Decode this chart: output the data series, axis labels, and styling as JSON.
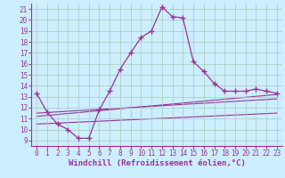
{
  "xlabel": "Windchill (Refroidissement éolien,°C)",
  "bg_color": "#cceeff",
  "line_color": "#993399",
  "grid_color": "#aaccbb",
  "xlim": [
    -0.5,
    23.5
  ],
  "ylim": [
    8.5,
    21.5
  ],
  "yticks": [
    9,
    10,
    11,
    12,
    13,
    14,
    15,
    16,
    17,
    18,
    19,
    20,
    21
  ],
  "xticks": [
    0,
    1,
    2,
    3,
    4,
    5,
    6,
    7,
    8,
    9,
    10,
    11,
    12,
    13,
    14,
    15,
    16,
    17,
    18,
    19,
    20,
    21,
    22,
    23
  ],
  "curve1_x": [
    0,
    1,
    2,
    3,
    4,
    5,
    6,
    7,
    8,
    9,
    10,
    11,
    12,
    13,
    14,
    15,
    16,
    17,
    18,
    19,
    20,
    21,
    22,
    23
  ],
  "curve1_y": [
    13.3,
    11.6,
    10.5,
    10.0,
    9.2,
    9.2,
    11.8,
    13.5,
    15.5,
    17.0,
    18.4,
    19.0,
    21.2,
    20.3,
    20.2,
    16.2,
    15.3,
    14.2,
    13.5,
    13.5,
    13.5,
    13.7,
    13.5,
    13.3
  ],
  "line1_x": [
    0,
    23
  ],
  "line1_y": [
    11.2,
    13.2
  ],
  "line2_x": [
    0,
    23
  ],
  "line2_y": [
    11.5,
    12.8
  ],
  "line3_x": [
    0,
    23
  ],
  "line3_y": [
    10.5,
    11.5
  ],
  "xlabel_fontsize": 6.5,
  "tick_fontsize": 5.5
}
